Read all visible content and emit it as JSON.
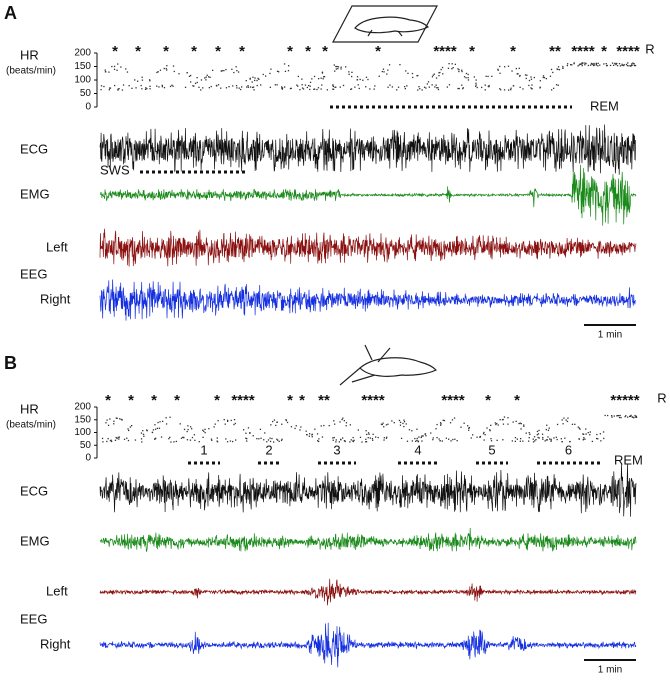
{
  "panels": [
    {
      "label": "A",
      "hr_label": "HR",
      "hr_unit": "(beats/min)",
      "hr_axis": {
        "ylim": [
          0,
          200
        ],
        "yticks": [
          0,
          50,
          100,
          150,
          200
        ]
      },
      "markers": [
        "*",
        "*",
        "*",
        "*",
        "*",
        "*",
        "*",
        "*",
        "*",
        "*",
        "****",
        "*",
        "*",
        "**",
        "****",
        "*",
        "****"
      ],
      "right_label": "R",
      "rem_label": "REM",
      "sws_label": "SWS",
      "traces": {
        "ecg": "ECG",
        "emg": "EMG",
        "left": "Left",
        "eeg": "EEG",
        "right": "Right"
      },
      "scale_label": "1 min"
    },
    {
      "label": "B",
      "hr_label": "HR",
      "hr_unit": "(beats/min)",
      "hr_axis": {
        "ylim": [
          0,
          200
        ],
        "yticks": [
          0,
          50,
          100,
          150,
          200
        ]
      },
      "markers": [
        "*",
        "*",
        "*",
        "*",
        "*",
        "****",
        "*",
        "*",
        "**",
        "****",
        "****",
        "*",
        "*",
        "*****"
      ],
      "right_label": "R",
      "rem_label": "REM",
      "segments": [
        "1",
        "2",
        "3",
        "4",
        "5",
        "6"
      ],
      "traces": {
        "ecg": "ECG",
        "emg": "EMG",
        "left": "Left",
        "eeg": "EEG",
        "right": "Right"
      },
      "scale_label": "1 min"
    }
  ]
}
